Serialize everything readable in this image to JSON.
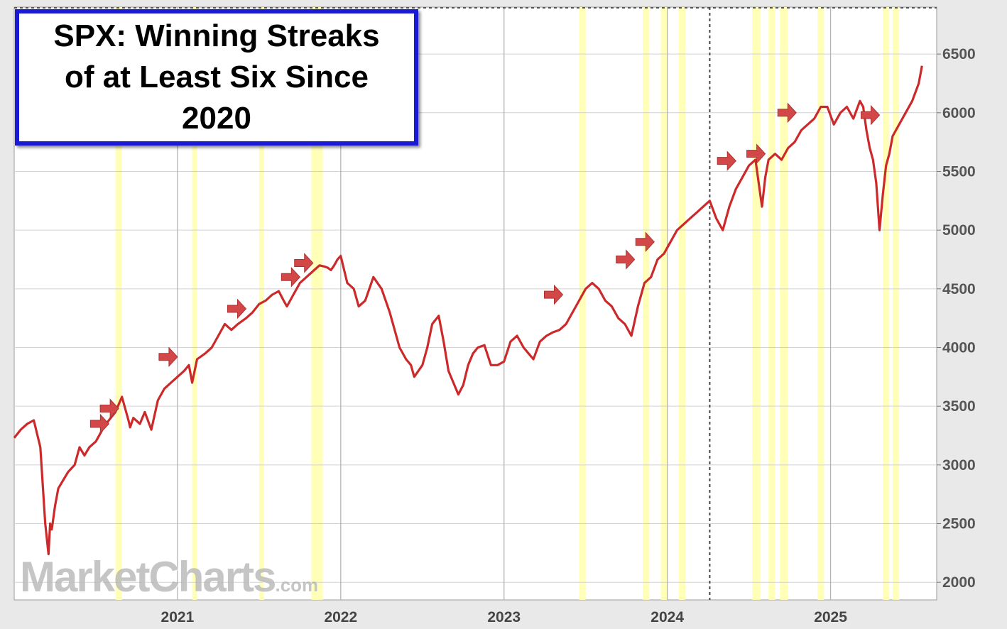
{
  "chart_data": {
    "type": "line",
    "title": "SPX: Winning Streaks of at Least Six Since 2020",
    "source": "MarketCharts",
    "source_suffix": ".com",
    "xlabel": "",
    "ylabel": "",
    "xlim": [
      2020.0,
      2025.65
    ],
    "ylim": [
      1850,
      6900
    ],
    "y_ticks": [
      2000,
      2500,
      3000,
      3500,
      4000,
      4500,
      5000,
      5500,
      6000,
      6500
    ],
    "y_tick_labels": [
      "2000",
      "2500",
      "3000",
      "3500",
      "4000",
      "4500",
      "5000",
      "5500",
      "6000",
      "6500"
    ],
    "x_ticks": [
      2021,
      2022,
      2023,
      2024,
      2025
    ],
    "x_tick_labels": [
      "2021",
      "2022",
      "2023",
      "2024",
      "2025"
    ],
    "grid": true,
    "legend": "none",
    "colors": {
      "line": "#cc2a2a",
      "highlight": "#ffffb0",
      "arrow": "#d24848",
      "title_border": "#1a1ad6",
      "grid": "#d2d2d2",
      "year_line": "#b4b4b4"
    },
    "series": [
      {
        "x": [
          2020.0,
          2020.04,
          2020.08,
          2020.12,
          2020.16,
          2020.19,
          2020.21,
          2020.22,
          2020.23,
          2020.25,
          2020.27,
          2020.3,
          2020.33,
          2020.37,
          2020.4,
          2020.43,
          2020.46,
          2020.5,
          2020.54,
          2020.58,
          2020.62,
          2020.66,
          2020.7,
          2020.71,
          2020.73,
          2020.77,
          2020.8,
          2020.84,
          2020.88,
          2020.92,
          2020.96,
          2021.0,
          2021.04,
          2021.07,
          2021.09,
          2021.12,
          2021.17,
          2021.21,
          2021.25,
          2021.29,
          2021.33,
          2021.37,
          2021.42,
          2021.46,
          2021.5,
          2021.54,
          2021.58,
          2021.62,
          2021.65,
          2021.67,
          2021.71,
          2021.75,
          2021.79,
          2021.83,
          2021.87,
          2021.9,
          2021.92,
          2021.94,
          2021.96,
          2021.98,
          2022.0,
          2022.04,
          2022.08,
          2022.11,
          2022.15,
          2022.2,
          2022.25,
          2022.3,
          2022.33,
          2022.36,
          2022.4,
          2022.43,
          2022.45,
          2022.5,
          2022.53,
          2022.56,
          2022.6,
          2022.63,
          2022.66,
          2022.69,
          2022.72,
          2022.75,
          2022.78,
          2022.81,
          2022.84,
          2022.88,
          2022.92,
          2022.96,
          2023.0,
          2023.04,
          2023.08,
          2023.12,
          2023.15,
          2023.18,
          2023.22,
          2023.26,
          2023.3,
          2023.34,
          2023.38,
          2023.42,
          2023.46,
          2023.5,
          2023.54,
          2023.58,
          2023.62,
          2023.66,
          2023.7,
          2023.74,
          2023.78,
          2023.82,
          2023.86,
          2023.9,
          2023.94,
          2023.98,
          2024.02,
          2024.06,
          2024.1,
          2024.14,
          2024.18,
          2024.22,
          2024.26,
          2024.3,
          2024.34,
          2024.38,
          2024.42,
          2024.46,
          2024.5,
          2024.54,
          2024.56,
          2024.58,
          2024.6,
          2024.62,
          2024.66,
          2024.7,
          2024.74,
          2024.78,
          2024.82,
          2024.86,
          2024.9,
          2024.94,
          2024.98,
          2025.02,
          2025.06,
          2025.1,
          2025.14,
          2025.18,
          2025.2,
          2025.22,
          2025.24,
          2025.26,
          2025.28,
          2025.3,
          2025.32,
          2025.34,
          2025.36,
          2025.38,
          2025.42,
          2025.46,
          2025.5,
          2025.54,
          2025.56
        ],
        "values": [
          3230,
          3300,
          3350,
          3380,
          3150,
          2500,
          2240,
          2500,
          2450,
          2650,
          2800,
          2870,
          2940,
          3000,
          3150,
          3080,
          3150,
          3200,
          3300,
          3380,
          3450,
          3580,
          3380,
          3320,
          3400,
          3350,
          3450,
          3300,
          3550,
          3650,
          3700,
          3750,
          3800,
          3850,
          3700,
          3900,
          3950,
          4000,
          4100,
          4200,
          4150,
          4200,
          4250,
          4300,
          4370,
          4400,
          4450,
          4480,
          4400,
          4350,
          4450,
          4550,
          4600,
          4650,
          4700,
          4690,
          4680,
          4660,
          4700,
          4750,
          4780,
          4550,
          4500,
          4350,
          4400,
          4600,
          4500,
          4300,
          4150,
          4000,
          3900,
          3850,
          3750,
          3850,
          4000,
          4200,
          4270,
          4050,
          3800,
          3700,
          3600,
          3680,
          3850,
          3950,
          4000,
          4020,
          3850,
          3850,
          3880,
          4050,
          4100,
          4000,
          3950,
          3900,
          4050,
          4100,
          4130,
          4150,
          4200,
          4300,
          4400,
          4500,
          4550,
          4500,
          4400,
          4350,
          4250,
          4200,
          4100,
          4350,
          4550,
          4600,
          4750,
          4800,
          4900,
          5000,
          5050,
          5100,
          5150,
          5200,
          5250,
          5100,
          5000,
          5200,
          5350,
          5450,
          5550,
          5600,
          5400,
          5200,
          5450,
          5600,
          5650,
          5600,
          5700,
          5750,
          5850,
          5900,
          5950,
          6050,
          6050,
          5900,
          6000,
          6050,
          5950,
          6100,
          6050,
          5850,
          5700,
          5600,
          5400,
          5000,
          5300,
          5550,
          5650,
          5800,
          5900,
          6000,
          6100,
          6250,
          6400
        ]
      }
    ],
    "highlights": [
      [
        2020.62,
        2020.66
      ],
      [
        2021.09,
        2021.12
      ],
      [
        2021.5,
        2021.53
      ],
      [
        2021.82,
        2021.89
      ],
      [
        2023.46,
        2023.5
      ],
      [
        2023.85,
        2023.89
      ],
      [
        2023.96,
        2024.0
      ],
      [
        2024.07,
        2024.11
      ],
      [
        2024.52,
        2024.57
      ],
      [
        2024.62,
        2024.66
      ],
      [
        2024.69,
        2024.74
      ],
      [
        2024.92,
        2024.96
      ],
      [
        2025.32,
        2025.36
      ],
      [
        2025.38,
        2025.42
      ]
    ],
    "arrows": [
      {
        "x": 2020.58,
        "y": 3350
      },
      {
        "x": 2020.64,
        "y": 3480
      },
      {
        "x": 2021.0,
        "y": 3920
      },
      {
        "x": 2021.42,
        "y": 4330
      },
      {
        "x": 2021.75,
        "y": 4600
      },
      {
        "x": 2021.83,
        "y": 4720
      },
      {
        "x": 2023.36,
        "y": 4450
      },
      {
        "x": 2023.8,
        "y": 4750
      },
      {
        "x": 2023.92,
        "y": 4900
      },
      {
        "x": 2024.42,
        "y": 5590
      },
      {
        "x": 2024.6,
        "y": 5650
      },
      {
        "x": 2024.79,
        "y": 6000
      },
      {
        "x": 2025.3,
        "y": 5980
      }
    ],
    "dotted_markers": [
      2024.26
    ]
  }
}
